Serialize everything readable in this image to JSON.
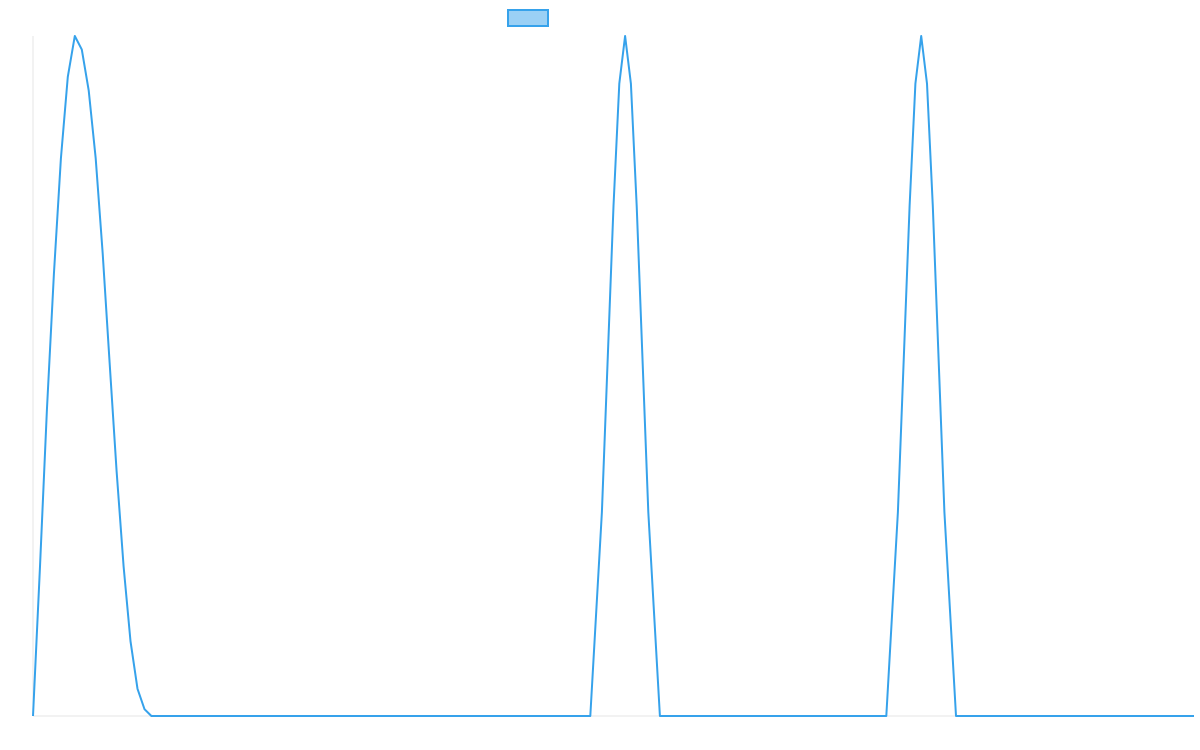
{
  "chart_data": {
    "type": "line",
    "title": "",
    "xlabel": "",
    "ylabel": "",
    "xlim": [
      0,
      100
    ],
    "ylim": [
      0,
      1
    ],
    "grid": false,
    "legend": {
      "placement": "top-center",
      "entries": [
        {
          "label": "",
          "color": "#36a2eb",
          "fill": "#9ad0f5"
        }
      ]
    },
    "series": [
      {
        "color": "#36a2eb",
        "x": [
          0,
          0.6,
          1.2,
          1.8,
          2.4,
          3.0,
          3.6,
          4.2,
          4.8,
          5.4,
          6.0,
          6.6,
          7.2,
          7.8,
          8.4,
          9.0,
          9.6,
          10.2,
          10.8,
          11.4,
          12.0,
          48.0,
          49.0,
          50.0,
          50.5,
          51.0,
          51.5,
          52.0,
          53.0,
          54.0,
          56.0,
          73.5,
          74.5,
          75.5,
          76.0,
          76.5,
          77.0,
          77.5,
          78.5,
          79.5,
          81.5,
          100
        ],
        "y": [
          0,
          0.22,
          0.45,
          0.65,
          0.82,
          0.94,
          1.0,
          0.98,
          0.92,
          0.82,
          0.68,
          0.52,
          0.36,
          0.22,
          0.11,
          0.04,
          0.01,
          0,
          0,
          0,
          0,
          0,
          0.3,
          0.75,
          0.93,
          1.0,
          0.93,
          0.75,
          0.3,
          0,
          0,
          0,
          0.3,
          0.75,
          0.93,
          1.0,
          0.93,
          0.75,
          0.3,
          0,
          0,
          0
        ]
      }
    ]
  }
}
